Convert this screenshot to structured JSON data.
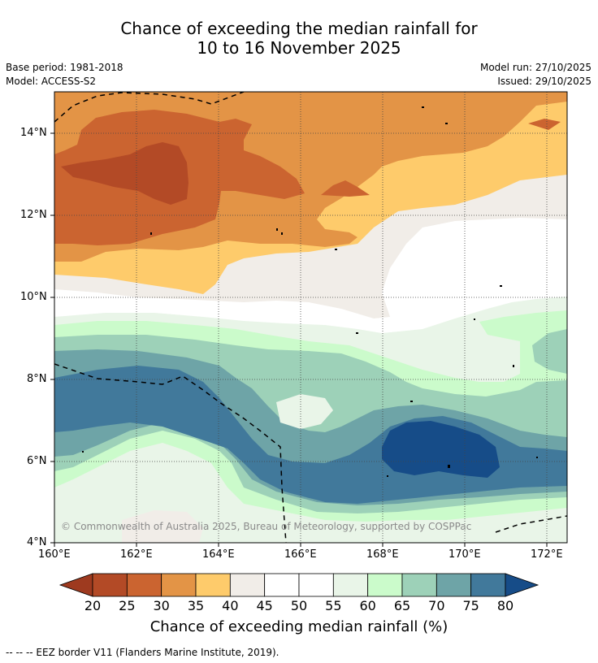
{
  "title_line1": "Chance of exceeding the median rainfall for",
  "title_line2": "10 to 16 November 2025",
  "base_period": "Base period: 1981-2018",
  "model": "Model: ACCESS-S2",
  "model_run": "Model run: 27/10/2025",
  "issued": "Issued: 29/10/2025",
  "copyright": "© Commonwealth of Australia 2025, Bureau of Meteorology, supported by COSPPac",
  "lat_labels": [
    "14°N",
    "12°N",
    "10°N",
    "8°N",
    "6°N",
    "4°N"
  ],
  "lon_labels": [
    "160°E",
    "162°E",
    "164°E",
    "166°E",
    "168°E",
    "170°E",
    "172°E"
  ],
  "colorbar": {
    "ticks": [
      "20",
      "25",
      "30",
      "35",
      "40",
      "45",
      "50",
      "55",
      "60",
      "65",
      "70",
      "75",
      "80"
    ],
    "colors": [
      "#9e3a1f",
      "#b34a26",
      "#cb6430",
      "#e39446",
      "#fecb6b",
      "#f1ede8",
      "#ffffff",
      "#ffffff",
      "#e9f5e8",
      "#cbfbcb",
      "#9dd1b8",
      "#6ea4a7",
      "#41799b",
      "#164c88"
    ],
    "title": "Chance of exceeding median rainfall (%)"
  },
  "footer": "--  --  -- EEZ border V11 (Flanders Marine Institute, 2019)."
}
